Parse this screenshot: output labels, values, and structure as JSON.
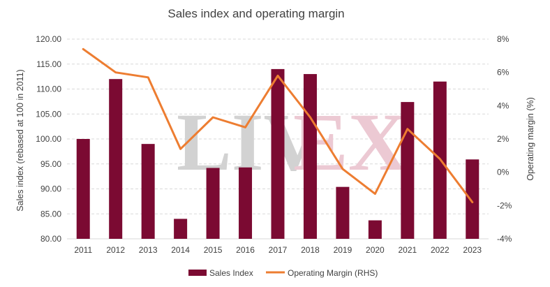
{
  "watermark": {
    "part1": "LIV",
    "part2": "EX",
    "color1": "#d2d2d2",
    "color2": "#ecc9d3"
  },
  "chart_data": {
    "type": "bar",
    "title": "Sales index and operating margin",
    "categories": [
      "2011",
      "2012",
      "2013",
      "2014",
      "2015",
      "2016",
      "2017",
      "2018",
      "2019",
      "2020",
      "2021",
      "2022",
      "2023"
    ],
    "series": [
      {
        "name": "Sales Index",
        "type": "bar",
        "axis": "left",
        "color": "#7b0a32",
        "values": [
          100.0,
          112.0,
          99.0,
          84.0,
          94.2,
          94.3,
          114.0,
          113.0,
          90.4,
          83.7,
          107.4,
          111.5,
          95.9
        ]
      },
      {
        "name": "Operating Margin (RHS)",
        "type": "line",
        "axis": "right",
        "color": "#ed7d31",
        "values": [
          7.4,
          6.0,
          5.7,
          1.4,
          3.3,
          2.7,
          5.8,
          3.3,
          0.2,
          -1.3,
          2.6,
          0.8,
          -1.8
        ]
      }
    ],
    "ylabel": "Sales index (rebased at 100 in 2011)",
    "y2label": "Operating margin (%)",
    "ylim": [
      80,
      120
    ],
    "y2lim": [
      -4,
      8
    ],
    "yticks": [
      "80.00",
      "85.00",
      "90.00",
      "95.00",
      "100.00",
      "105.00",
      "110.00",
      "115.00",
      "120.00"
    ],
    "y2ticks": [
      "-4%",
      "-2%",
      "0%",
      "2%",
      "4%",
      "6%",
      "8%"
    ],
    "grid": true,
    "legend_position": "bottom"
  }
}
